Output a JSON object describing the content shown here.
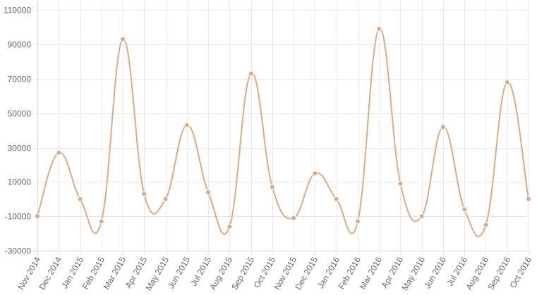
{
  "chart_data": {
    "type": "line",
    "title": "",
    "xlabel": "",
    "ylabel": "",
    "categories": [
      "Nov 2014",
      "Dec 2014",
      "Jan 2015",
      "Feb 2015",
      "Mar 2015",
      "Apr 2015",
      "May 2015",
      "Jun 2015",
      "Jul 2015",
      "Aug 2015",
      "Sep 2015",
      "Oct 2015",
      "Nov 2015",
      "Dec 2015",
      "Jan 2016",
      "Feb 2016",
      "Mar 2016",
      "Apr 2016",
      "May 2016",
      "Jun 2016",
      "Jul 2016",
      "Aug 2016",
      "Sep 2016",
      "Oct 2016"
    ],
    "series": [
      {
        "color": "#dcaa87",
        "values": [
          -10000,
          27000,
          0,
          -13000,
          93000,
          3000,
          0,
          43000,
          4000,
          -16000,
          73000,
          7000,
          -11000,
          15000,
          0,
          -13000,
          99000,
          9000,
          -10000,
          42000,
          -6000,
          -15000,
          68000,
          0
        ]
      }
    ],
    "y_ticks": [
      "110000",
      "90000",
      "70000",
      "50000",
      "30000",
      "10000",
      "-10000",
      "-30000"
    ],
    "ylim": [
      -30000,
      115000
    ],
    "grid": true,
    "legend": "none"
  }
}
